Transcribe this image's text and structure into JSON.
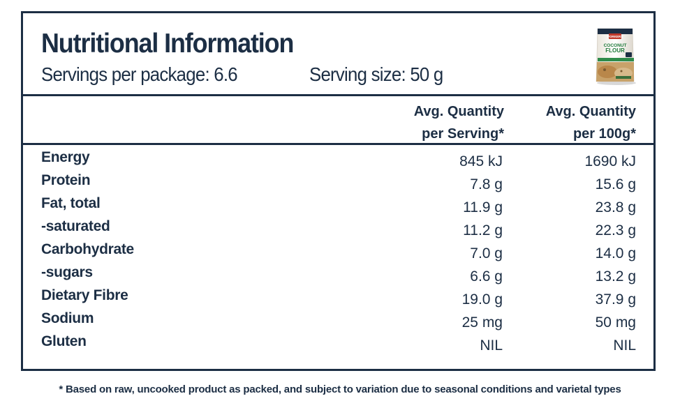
{
  "header": {
    "title": "Nutritional Information",
    "servings": "Servings per package: 6.6",
    "serving_size": "Serving size: 50 g"
  },
  "columns": {
    "per_serving_line1": "Avg. Quantity",
    "per_serving_line2": "per Serving*",
    "per_100g_line1": "Avg. Quantity",
    "per_100g_line2": "per 100g*"
  },
  "rows": [
    {
      "label": "Energy",
      "per_serving": "845 kJ",
      "per_100g": "1690 kJ"
    },
    {
      "label": "Protein",
      "per_serving": "7.8 g",
      "per_100g": "15.6 g"
    },
    {
      "label": "Fat, total",
      "per_serving": "11.9 g",
      "per_100g": "23.8 g"
    },
    {
      "label": "-saturated",
      "per_serving": "11.2 g",
      "per_100g": "22.3 g"
    },
    {
      "label": "Carbohydrate",
      "per_serving": "7.0 g",
      "per_100g": "14.0 g"
    },
    {
      "label": "-sugars",
      "per_serving": "6.6 g",
      "per_100g": "13.2 g"
    },
    {
      "label": "Dietary Fibre",
      "per_serving": "19.0 g",
      "per_100g": "37.9 g"
    },
    {
      "label": "Sodium",
      "per_serving": "25 mg",
      "per_100g": "50 mg"
    },
    {
      "label": "Gluten",
      "per_serving": "NIL",
      "per_100g": "NIL"
    }
  ],
  "product_image": {
    "brand": "PORKERS",
    "product_line1": "COCONUT",
    "product_line2": "FLOUR"
  },
  "footnote": "* Based on raw, uncooked product as packed, and subject to variation due to seasonal conditions and varietal types",
  "colors": {
    "ink": "#1c2e44",
    "background": "#ffffff"
  }
}
